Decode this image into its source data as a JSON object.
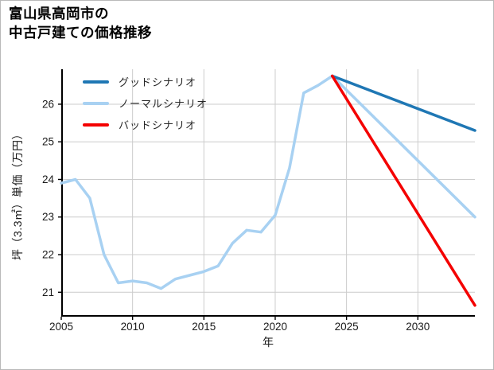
{
  "header": {
    "title_line1": "富山県高岡市の",
    "title_line2": "中古戸建ての価格推移"
  },
  "legend": {
    "items": [
      {
        "label": "グッドシナリオ",
        "color": "#1f77b4"
      },
      {
        "label": "ノーマルシナリオ",
        "color": "#a8d1f2"
      },
      {
        "label": "バッドシナリオ",
        "color": "#f40000"
      }
    ]
  },
  "axes": {
    "xlabel": "年",
    "ylabel": "坪（3.3㎡）単価（万円）"
  },
  "colors": {
    "good": "#1f77b4",
    "normal": "#a8d1f2",
    "bad": "#f40000",
    "grid": "#cccccc",
    "spine": "#000000",
    "tick_text": "#1a1a1a"
  },
  "chart_data": {
    "type": "line",
    "title": "富山県高岡市の中古戸建ての価格推移",
    "xlabel": "年",
    "ylabel": "坪（3.3㎡）単価（万円）",
    "xlim": [
      2005,
      2034
    ],
    "ylim": [
      20.35,
      26.93
    ],
    "xticks": [
      2005,
      2010,
      2015,
      2020,
      2025,
      2030
    ],
    "yticks": [
      21,
      22,
      23,
      24,
      25,
      26
    ],
    "grid": true,
    "legend_position": "upper left",
    "series": [
      {
        "name": "historical",
        "legend_label": null,
        "color": "#a8d1f2",
        "x": [
          2005,
          2006,
          2007,
          2008,
          2009,
          2010,
          2011,
          2012,
          2013,
          2014,
          2015,
          2016,
          2017,
          2018,
          2019,
          2020,
          2021,
          2022,
          2023,
          2024
        ],
        "y": [
          23.9,
          24.0,
          23.5,
          22.0,
          21.25,
          21.3,
          21.25,
          21.1,
          21.35,
          21.45,
          21.55,
          21.7,
          22.3,
          22.65,
          22.6,
          23.05,
          24.3,
          26.3,
          26.5,
          26.75
        ]
      },
      {
        "name": "normal-scenario",
        "legend_label": "ノーマルシナリオ",
        "color": "#a8d1f2",
        "x": [
          2024,
          2034
        ],
        "y": [
          26.75,
          23.0
        ]
      },
      {
        "name": "good-scenario",
        "legend_label": "グッドシナリオ",
        "color": "#1f77b4",
        "x": [
          2024,
          2034
        ],
        "y": [
          26.75,
          25.3
        ]
      },
      {
        "name": "bad-scenario",
        "legend_label": "バッドシナリオ",
        "color": "#f40000",
        "x": [
          2024,
          2034
        ],
        "y": [
          26.75,
          20.65
        ]
      }
    ]
  }
}
